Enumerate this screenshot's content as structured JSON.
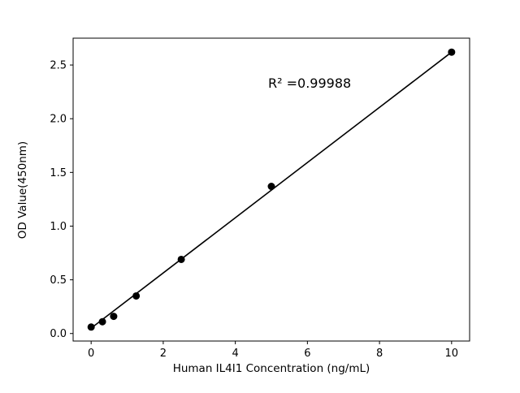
{
  "chart_data": {
    "type": "scatter",
    "title": "",
    "x": [
      0,
      0.3125,
      0.625,
      1.25,
      2.5,
      5,
      10
    ],
    "y": [
      0.06,
      0.11,
      0.16,
      0.35,
      0.69,
      1.37,
      2.62
    ],
    "fit_line": {
      "x": [
        0,
        10
      ],
      "y": [
        0.05,
        2.62
      ]
    },
    "annotation": "R² =0.99988",
    "xlabel": "Human IL4I1 Concentration (ng/mL)",
    "ylabel": "OD Value(450nm)",
    "xlim": [
      -0.5,
      10.5
    ],
    "ylim": [
      -0.07,
      2.75
    ],
    "xticks": [
      0,
      2,
      4,
      6,
      8,
      10
    ],
    "xticklabels": [
      "0",
      "2",
      "4",
      "6",
      "8",
      "10"
    ],
    "yticks": [
      0.0,
      0.5,
      1.0,
      1.5,
      2.0,
      2.5
    ],
    "yticklabels": [
      "0.0",
      "0.5",
      "1.0",
      "1.5",
      "2.0",
      "2.5"
    ],
    "grid": false,
    "legend": null,
    "marker_color": "#000000",
    "line_color": "#000000",
    "background_color": "#ffffff"
  }
}
